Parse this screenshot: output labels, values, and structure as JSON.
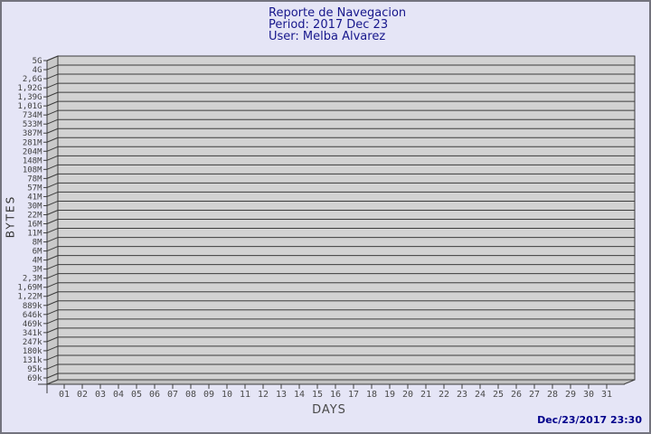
{
  "page": {
    "background": "#e5e5f6",
    "border_color": "#73737e"
  },
  "header": {
    "title": "Reporte de Navegacion",
    "period_line": "Period: 2017 Dec 23",
    "user_line": "User: Melba Alvarez"
  },
  "footer": {
    "timestamp": "Dec/23/2017 23:30"
  },
  "colors": {
    "title_text": "#17178c",
    "timestamp_text": "#00008b",
    "plot_face": "#d2d2d2",
    "plot_side": "#c9c9c9",
    "plot_floor": "#c2c2c2",
    "grid_line": "#3c3c3c",
    "tick_text": "#3f3f3f",
    "day_text": "#4a4a4a"
  },
  "chart_data": {
    "type": "line",
    "title": "Reporte de Navegacion",
    "subtitle": [
      "Period: 2017 Dec 23",
      "User: Melba Alvarez"
    ],
    "xlabel": "DAYS",
    "ylabel": "BYTES",
    "x_tick_labels": [
      "01",
      "02",
      "03",
      "04",
      "05",
      "06",
      "07",
      "08",
      "09",
      "10",
      "11",
      "12",
      "13",
      "14",
      "15",
      "16",
      "17",
      "18",
      "19",
      "20",
      "21",
      "22",
      "23",
      "24",
      "25",
      "26",
      "27",
      "28",
      "29",
      "30",
      "31"
    ],
    "y_tick_labels": [
      "5G",
      "4G",
      "2,6G",
      "1,92G",
      "1,39G",
      "1,01G",
      "734M",
      "533M",
      "387M",
      "281M",
      "204M",
      "148M",
      "108M",
      "78M",
      "57M",
      "41M",
      "30M",
      "22M",
      "16M",
      "11M",
      "8M",
      "6M",
      "4M",
      "3M",
      "2,3M",
      "1,69M",
      "1,22M",
      "889k",
      "646k",
      "469k",
      "341k",
      "247k",
      "180k",
      "131k",
      "95k",
      "69k"
    ],
    "y_scale": "log",
    "y_range": [
      "69k",
      "5G"
    ],
    "grid": "horizontal",
    "style": "3d-box",
    "series": [],
    "footer_timestamp": "Dec/23/2017 23:30"
  }
}
